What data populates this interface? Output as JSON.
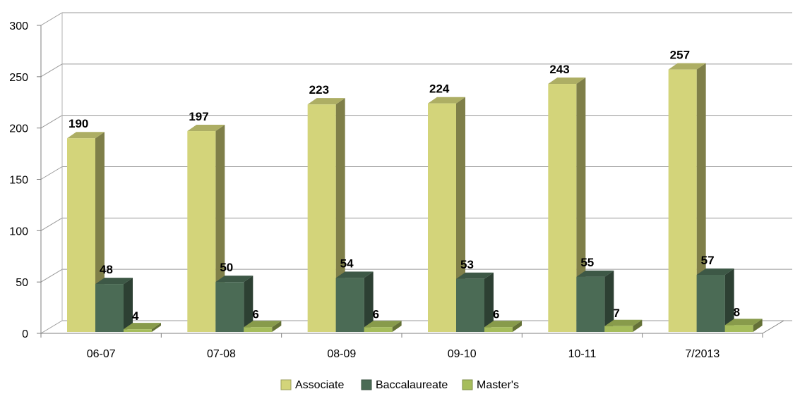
{
  "chart_data": {
    "type": "bar",
    "categories": [
      "06-07",
      "07-08",
      "08-09",
      "09-10",
      "10-11",
      "7/2013"
    ],
    "series": [
      {
        "name": "Associate",
        "values": [
          190,
          197,
          223,
          224,
          243,
          257
        ],
        "color": "#d3d47a"
      },
      {
        "name": "Baccalaureate",
        "values": [
          48,
          50,
          54,
          53,
          55,
          57
        ],
        "color": "#4b6b55"
      },
      {
        "name": "Master's",
        "values": [
          4,
          6,
          6,
          6,
          7,
          8
        ],
        "color": "#a6bd5c"
      }
    ],
    "ylim": [
      0,
      300
    ],
    "yticks": [
      "0",
      "50",
      "100",
      "150",
      "200",
      "250",
      "300"
    ],
    "grid": true,
    "legend_position": "bottom",
    "data_labels": true,
    "style": "3d-clustered-column"
  }
}
